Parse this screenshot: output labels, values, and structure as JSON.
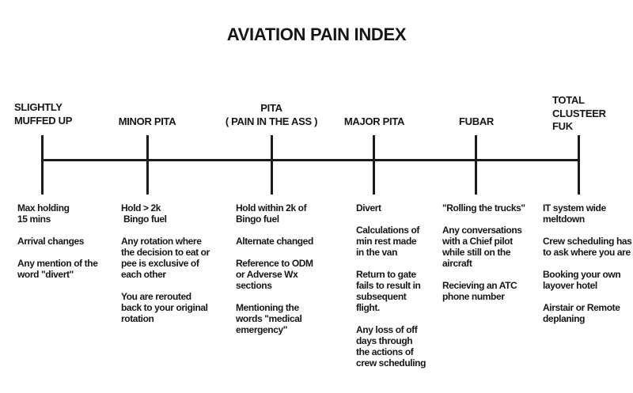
{
  "title": "AVIATION PAIN INDEX",
  "colors": {
    "ink": "#1b1b1b",
    "background": "#ffffff"
  },
  "scale": {
    "type": "severity-scale",
    "orientation": "horizontal",
    "levels": [
      {
        "label": "SLIGHTLY\nMUFFED UP",
        "items": [
          "Max holding\n15 mins",
          "Arrival changes",
          "Any mention of the\nword \"divert\""
        ]
      },
      {
        "label": "MINOR PITA",
        "items": [
          "Hold > 2k\n Bingo fuel",
          "Any rotation where\nthe decision to eat or\npee is exclusive of\neach other",
          "You are rerouted\nback to your original\nrotation"
        ]
      },
      {
        "label": "PITA\n( PAIN IN THE ASS )",
        "items": [
          "Hold within 2k of\nBingo fuel",
          "Alternate changed",
          "Reference to ODM\nor Adverse Wx\nsections",
          "Mentioning the\nwords \"medical\nemergency\""
        ]
      },
      {
        "label": "MAJOR PITA",
        "items": [
          "Divert",
          "Calculations of\nmin rest made\nin the van",
          "Return to gate\nfails to result in\nsubsequent\nflight.",
          "Any loss of off\ndays through\nthe actions of\ncrew scheduling"
        ]
      },
      {
        "label": "FUBAR",
        "items": [
          "\"Rolling the trucks\"",
          "Any conversations\nwith a Chief pilot\nwhile still on the\naircraft",
          "Recieving an ATC\nphone number"
        ]
      },
      {
        "label": "TOTAL\nCLUSTEER\nFUK",
        "items": [
          "IT system wide\nmeltdown",
          "Crew scheduling has\nto ask where you are",
          "Booking your own\nlayover hotel",
          "Airstair or Remote\ndeplaning"
        ]
      }
    ]
  }
}
